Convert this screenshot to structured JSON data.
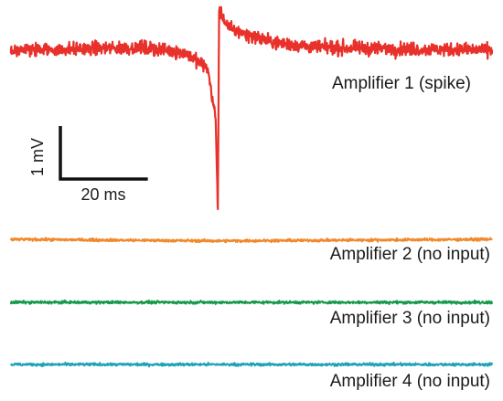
{
  "chart_data": {
    "type": "line",
    "title": "",
    "xlabel": "",
    "ylabel": "",
    "grid": false,
    "legend": "none",
    "x_unit": "ms",
    "y_unit": "mV",
    "duration_ms": 110,
    "scale_bar": {
      "time_value": 20,
      "time_label": "20 ms",
      "voltage_value": 1,
      "voltage_label": "1 mV"
    },
    "series": [
      {
        "name": "Amplifier 1 (spike)",
        "color": "#e8312a",
        "baseline_mV": 0.0,
        "noise_mV": 0.09,
        "events": [
          {
            "t_ms": 0,
            "mV": 0.0
          },
          {
            "t_ms": 30,
            "mV": 0.05
          },
          {
            "t_ms": 40,
            "mV": -0.05
          },
          {
            "t_ms": 45,
            "mV": -0.35
          },
          {
            "t_ms": 46.8,
            "mV": -1.3
          },
          {
            "t_ms": 47.3,
            "mV": -3.0
          },
          {
            "t_ms": 47.6,
            "mV": 0.75
          },
          {
            "t_ms": 50,
            "mV": 0.4
          },
          {
            "t_ms": 60,
            "mV": 0.15
          },
          {
            "t_ms": 70,
            "mV": 0.05
          },
          {
            "t_ms": 110,
            "mV": 0.0
          }
        ]
      },
      {
        "name": "Amplifier 2 (no input)",
        "color": "#f0892c",
        "baseline_mV": 0.0,
        "noise_mV": 0.018,
        "events": [
          {
            "t_ms": 0,
            "mV": 0.0
          },
          {
            "t_ms": 47.3,
            "mV": -0.03
          },
          {
            "t_ms": 110,
            "mV": 0.0
          }
        ]
      },
      {
        "name": "Amplifier 3 (no input)",
        "color": "#169a4a",
        "baseline_mV": 0.0,
        "noise_mV": 0.018,
        "events": [
          {
            "t_ms": 0,
            "mV": 0.0
          },
          {
            "t_ms": 110,
            "mV": 0.0
          }
        ]
      },
      {
        "name": "Amplifier 4 (no input)",
        "color": "#1ea3b6",
        "baseline_mV": 0.0,
        "noise_mV": 0.018,
        "events": [
          {
            "t_ms": 0,
            "mV": 0.0
          },
          {
            "t_ms": 110,
            "mV": 0.0
          }
        ]
      }
    ]
  }
}
